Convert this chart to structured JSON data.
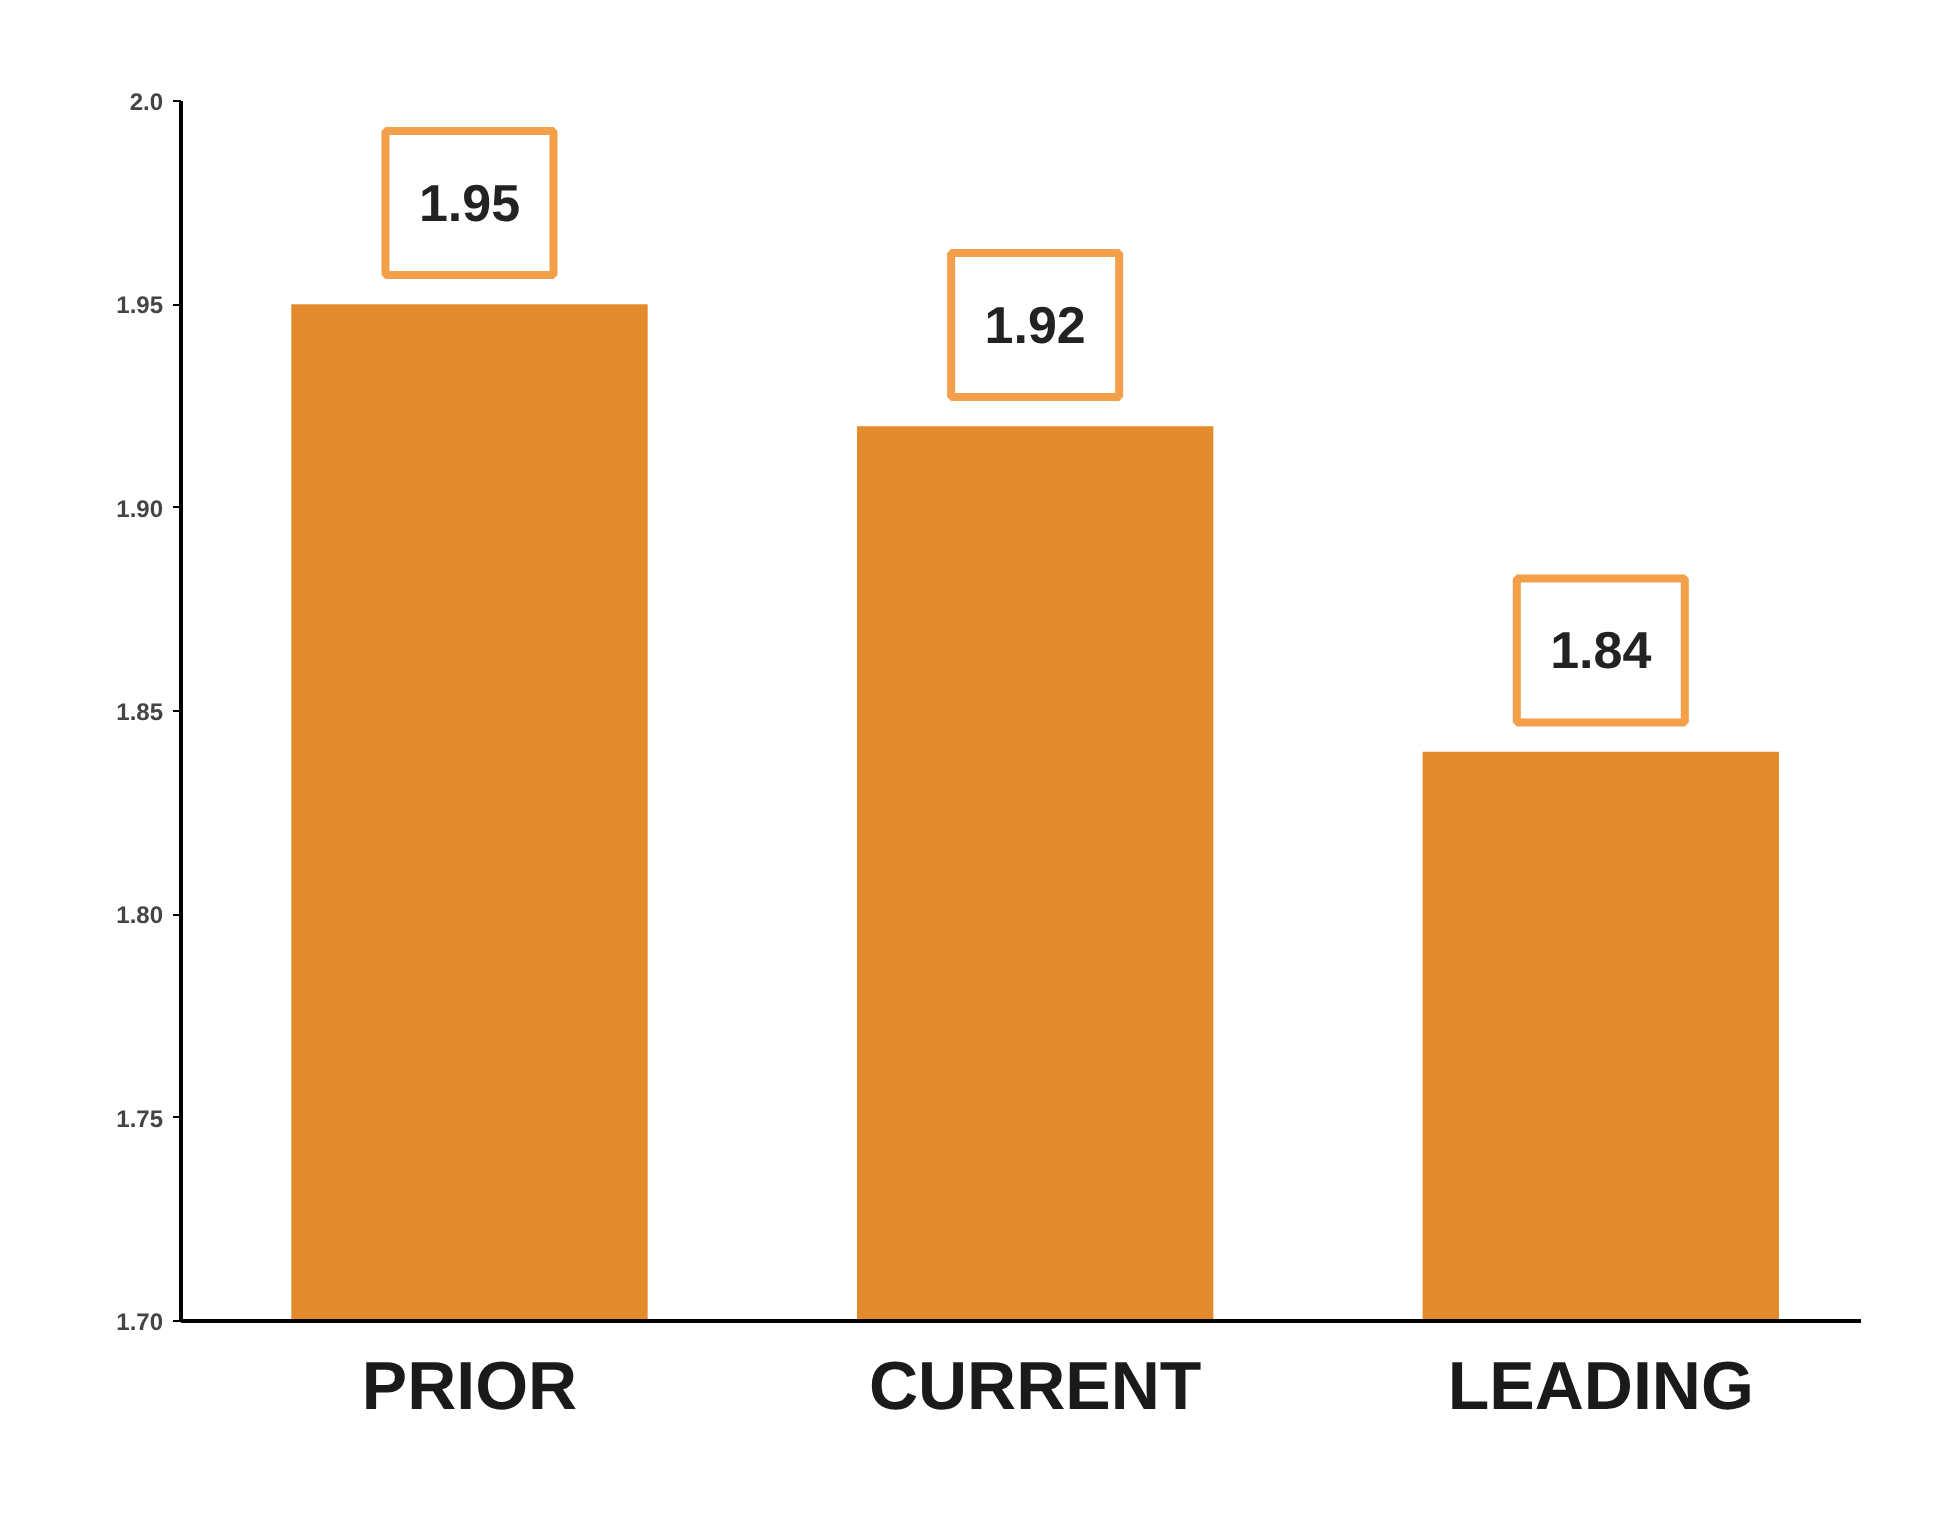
{
  "chart_data": {
    "type": "bar",
    "categories": [
      "PRIOR",
      "CURRENT",
      "LEADING"
    ],
    "values": [
      1.95,
      1.92,
      1.84
    ],
    "color": "#e38b2c",
    "ylim": [
      1.7,
      2.0
    ],
    "yticks": [
      {
        "value": 1.7,
        "label": "1.70"
      },
      1.75,
      {
        "value": 1.8,
        "label": "1.80"
      },
      1.85,
      {
        "value": 1.9,
        "label": "1.90"
      },
      1.95,
      {
        "value": 2.0,
        "label": "2.0"
      }
    ],
    "grid": false,
    "data_labels": true
  }
}
